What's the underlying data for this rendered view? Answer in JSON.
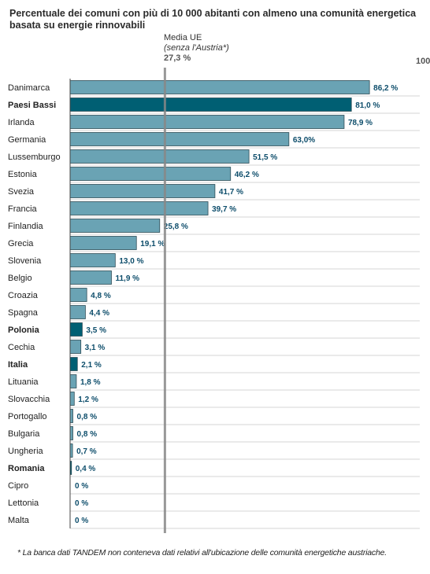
{
  "title": "Percentuale dei comuni con più di 10 000 abitanti con almeno una comunità energetica basata su energie rinnovabili",
  "mean": {
    "label": "Media UE",
    "sub": "(senza l'Austria*)",
    "value_text": "27,3 %",
    "value": 27.3
  },
  "axis_max_text": "100",
  "footnote": "* La banca dati TANDEM non conteneva dati relativi all'ubicazione delle comunità energetiche austriache.",
  "colors": {
    "bar": "#6aa3b4",
    "highlight": "#005f73",
    "bar_border": "#2e4d57",
    "label": "#0d4d6b",
    "mean_line": "#888888",
    "grid": "#d6d6d6"
  },
  "chart_data": {
    "type": "bar",
    "orientation": "horizontal",
    "xlim": [
      0,
      100
    ],
    "categories": [
      "Danimarca",
      "Paesi Bassi",
      "Irlanda",
      "Germania",
      "Lussemburgo",
      "Estonia",
      "Svezia",
      "Francia",
      "Finlandia",
      "Grecia",
      "Slovenia",
      "Belgio",
      "Croazia",
      "Spagna",
      "Polonia",
      "Cechia",
      "Italia",
      "Lituania",
      "Slovacchia",
      "Portogallo",
      "Bulgaria",
      "Ungheria",
      "Romania",
      "Cipro",
      "Lettonia",
      "Malta"
    ],
    "values": [
      86.2,
      81.0,
      78.9,
      63.0,
      51.5,
      46.2,
      41.7,
      39.7,
      25.8,
      19.1,
      13.0,
      11.9,
      4.8,
      4.4,
      3.5,
      3.1,
      2.1,
      1.8,
      1.2,
      0.8,
      0.8,
      0.7,
      0.4,
      0,
      0,
      0
    ],
    "value_labels": [
      "86,2 %",
      "81,0 %",
      "78,9 %",
      "63,0%",
      "51,5 %",
      "46,2 %",
      "41,7 %",
      "39,7 %",
      "25,8 %",
      "19,1 %",
      "13,0 %",
      "11,9 %",
      "4,8 %",
      "4,4 %",
      "3,5 %",
      "3,1 %",
      "2,1 %",
      "1,8 %",
      "1,2 %",
      "0,8 %",
      "0,8 %",
      "0,7 %",
      "0,4 %",
      "0 %",
      "0 %",
      "0 %"
    ],
    "highlighted": [
      "Paesi Bassi",
      "Polonia",
      "Italia",
      "Romania"
    ]
  }
}
